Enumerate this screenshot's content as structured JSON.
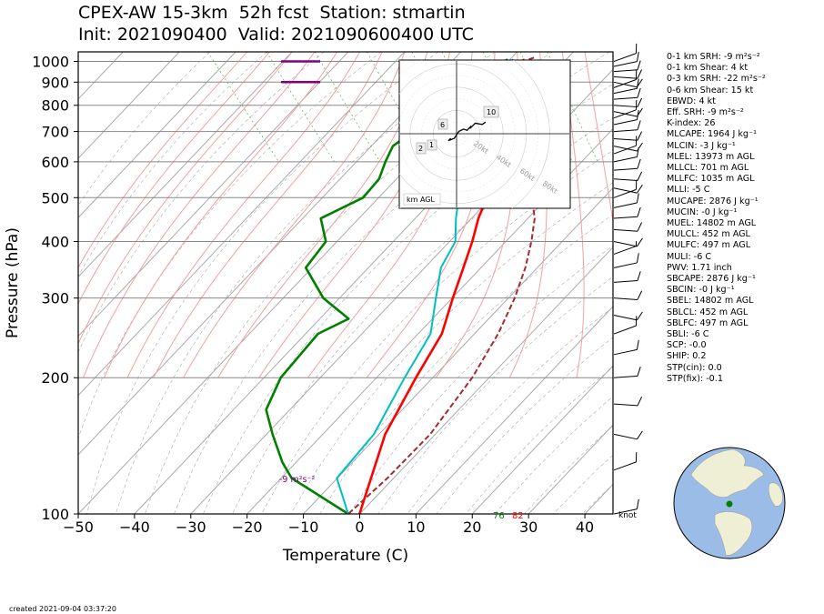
{
  "title": {
    "line1": "CPEX-AW 15-3km  52h fcst  Station: stmartin",
    "line2": "Init: 2021090400  Valid: 2021090600400 UTC"
  },
  "created": "created 2021-09-04 03:37:20",
  "colors": {
    "temperature": "#ff0000",
    "dewpoint": "#008000",
    "wetbulb": "#00bfbf",
    "parcel": "#a52a2a",
    "srh": "#800080",
    "dry_adiabat": "#aaaaaa",
    "moist_adiabat": "#f4a0a0",
    "mixing_ratio": "#66bb66"
  },
  "stats": [
    "0-1 km SRH: -9 m²s⁻²",
    "0-1 km Shear: 4 kt",
    "0-3 km SRH: -22 m²s⁻²",
    "0-6 km Shear: 15 kt",
    "EBWD: 4 kt",
    "Eff. SRH: -9 m²s⁻²",
    "K-index: 26",
    "MLCAPE: 1964 J kg⁻¹",
    "MLCIN: -3 J kg⁻¹",
    "MLEL: 13973 m AGL",
    "MLLCL: 701 m AGL",
    "MLLFC: 1035 m AGL",
    "MLLI: -5 C",
    "MUCAPE: 2876 J kg⁻¹",
    "MUCIN: -0 J kg⁻¹",
    "MUEL: 14802 m AGL",
    "MULCL: 452 m AGL",
    "MULFC: 497 m AGL",
    "MULI: -6 C",
    "PWV: 1.71 inch",
    "SBCAPE: 2876 J kg⁻¹",
    "SBCIN: -0 J kg⁻¹",
    "SBEL: 14802 m AGL",
    "SBLCL: 452 m AGL",
    "SBLFC: 497 m AGL",
    "SBLI: -6 C",
    "SCP: -0.0",
    "SHIP: 0.2",
    "STP(cin): 0.0",
    "STP(fix): -0.1"
  ],
  "srh_label": "-9 m²s⁻²",
  "hodograph": {
    "ring_labels": [
      "20kt",
      "40kt",
      "60kt",
      "80kt"
    ],
    "height_labels": [
      "1",
      "2",
      "6",
      "10"
    ],
    "footer": "km AGL"
  },
  "barb_unit": "knot",
  "surface_labels": {
    "dewpoint": "76",
    "temperature": "82"
  },
  "chart_data": {
    "type": "line",
    "subtype": "skew-T log-p",
    "xlabel": "Temperature (C)",
    "ylabel": "Pressure (hPa)",
    "xlim": [
      -50,
      45
    ],
    "ylim": [
      1050,
      100
    ],
    "y_scale": "log",
    "x_ticks": [
      -50,
      -40,
      -30,
      -20,
      -10,
      0,
      10,
      20,
      30,
      40
    ],
    "y_ticks": [
      100,
      200,
      300,
      400,
      500,
      600,
      700,
      800,
      900,
      1000
    ],
    "series": [
      {
        "name": "Temperature",
        "points": [
          [
            1010,
            28
          ],
          [
            1000,
            27
          ],
          [
            975,
            25
          ],
          [
            950,
            24
          ],
          [
            925,
            22.5
          ],
          [
            900,
            21
          ],
          [
            875,
            19.5
          ],
          [
            850,
            18
          ],
          [
            825,
            16.5
          ],
          [
            800,
            15
          ],
          [
            775,
            14
          ],
          [
            750,
            13
          ],
          [
            725,
            14
          ],
          [
            710,
            13
          ],
          [
            700,
            11
          ],
          [
            680,
            9
          ],
          [
            650,
            7
          ],
          [
            600,
            4.5
          ],
          [
            575,
            3
          ],
          [
            550,
            1
          ],
          [
            525,
            -0.5
          ],
          [
            500,
            -2
          ],
          [
            450,
            -7
          ],
          [
            400,
            -12
          ],
          [
            350,
            -18
          ],
          [
            300,
            -25
          ],
          [
            250,
            -33
          ],
          [
            200,
            -45
          ],
          [
            150,
            -60
          ],
          [
            100,
            -78
          ]
        ]
      },
      {
        "name": "Dewpoint",
        "points": [
          [
            1010,
            25
          ],
          [
            1000,
            24
          ],
          [
            975,
            21
          ],
          [
            950,
            19
          ],
          [
            925,
            16
          ],
          [
            900,
            13
          ],
          [
            875,
            10.5
          ],
          [
            850,
            10
          ],
          [
            825,
            11
          ],
          [
            800,
            12
          ],
          [
            775,
            10.5
          ],
          [
            750,
            8
          ],
          [
            720,
            0
          ],
          [
            700,
            -4
          ],
          [
            650,
            -10
          ],
          [
            600,
            -14
          ],
          [
            550,
            -18
          ],
          [
            500,
            -24
          ],
          [
            450,
            -35
          ],
          [
            400,
            -38
          ],
          [
            350,
            -46
          ],
          [
            300,
            -48
          ],
          [
            270,
            -47
          ],
          [
            250,
            -55
          ],
          [
            200,
            -69
          ],
          [
            170,
            -77
          ],
          [
            150,
            -80
          ],
          [
            130,
            -83
          ],
          [
            120,
            -84
          ],
          [
            100,
            -80
          ]
        ]
      },
      {
        "name": "Wet-bulb",
        "points": [
          [
            1010,
            26
          ],
          [
            1000,
            25
          ],
          [
            975,
            23
          ],
          [
            950,
            21.5
          ],
          [
            925,
            19
          ],
          [
            900,
            16.5
          ],
          [
            875,
            14.5
          ],
          [
            850,
            13
          ],
          [
            825,
            12.5
          ],
          [
            800,
            12.5
          ],
          [
            775,
            11
          ],
          [
            750,
            9
          ],
          [
            700,
            5
          ],
          [
            650,
            2
          ],
          [
            600,
            -1
          ],
          [
            550,
            -4
          ],
          [
            500,
            -7
          ],
          [
            450,
            -11
          ],
          [
            400,
            -15
          ],
          [
            350,
            -22
          ],
          [
            300,
            -28
          ],
          [
            250,
            -35
          ],
          [
            200,
            -47
          ],
          [
            150,
            -62
          ],
          [
            120,
            -76
          ],
          [
            100,
            -80
          ]
        ]
      },
      {
        "name": "Parcel",
        "points": [
          [
            1020,
            30
          ],
          [
            1000,
            27.5
          ],
          [
            950,
            24.5
          ],
          [
            900,
            22.5
          ],
          [
            850,
            21
          ],
          [
            800,
            19
          ],
          [
            750,
            17
          ],
          [
            700,
            15.5
          ],
          [
            650,
            13.5
          ],
          [
            600,
            11.5
          ],
          [
            550,
            9
          ],
          [
            500,
            6
          ],
          [
            450,
            3
          ],
          [
            400,
            -1.5
          ],
          [
            350,
            -7
          ],
          [
            300,
            -14
          ],
          [
            250,
            -23
          ],
          [
            200,
            -35
          ],
          [
            150,
            -52
          ],
          [
            120,
            -67
          ],
          [
            100,
            -80
          ]
        ]
      }
    ],
    "wind_barbs": [
      {
        "p": 1000,
        "speed_kt": 10
      },
      {
        "p": 975,
        "speed_kt": 10
      },
      {
        "p": 950,
        "speed_kt": 10
      },
      {
        "p": 925,
        "speed_kt": 10
      },
      {
        "p": 900,
        "speed_kt": 10
      },
      {
        "p": 875,
        "speed_kt": 10
      },
      {
        "p": 850,
        "speed_kt": 10
      },
      {
        "p": 825,
        "speed_kt": 10
      },
      {
        "p": 800,
        "speed_kt": 10
      },
      {
        "p": 775,
        "speed_kt": 10
      },
      {
        "p": 750,
        "speed_kt": 10
      },
      {
        "p": 725,
        "speed_kt": 10
      },
      {
        "p": 700,
        "speed_kt": 10
      },
      {
        "p": 675,
        "speed_kt": 10
      },
      {
        "p": 650,
        "speed_kt": 10
      },
      {
        "p": 625,
        "speed_kt": 10
      },
      {
        "p": 600,
        "speed_kt": 10
      },
      {
        "p": 575,
        "speed_kt": 10
      },
      {
        "p": 550,
        "speed_kt": 10
      },
      {
        "p": 525,
        "speed_kt": 10
      },
      {
        "p": 500,
        "speed_kt": 10
      },
      {
        "p": 475,
        "speed_kt": 10
      },
      {
        "p": 450,
        "speed_kt": 10
      },
      {
        "p": 425,
        "speed_kt": 10
      },
      {
        "p": 400,
        "speed_kt": 10
      },
      {
        "p": 375,
        "speed_kt": 5
      },
      {
        "p": 350,
        "speed_kt": 10
      },
      {
        "p": 325,
        "speed_kt": 10
      },
      {
        "p": 300,
        "speed_kt": 10
      },
      {
        "p": 275,
        "speed_kt": 10
      },
      {
        "p": 250,
        "speed_kt": 10
      },
      {
        "p": 225,
        "speed_kt": 10
      },
      {
        "p": 200,
        "speed_kt": 10
      },
      {
        "p": 175,
        "speed_kt": 10
      },
      {
        "p": 150,
        "speed_kt": 10
      },
      {
        "p": 125,
        "speed_kt": 10
      },
      {
        "p": 100,
        "speed_kt": 10
      }
    ],
    "srh_layers_hPa": [
      900,
      1000
    ],
    "hodograph": {
      "ring_speeds_kt": [
        20,
        40,
        60,
        80
      ],
      "points_kt": [
        [
          -5,
          -4
        ],
        [
          -7,
          -6
        ],
        [
          -2,
          -4
        ],
        [
          2,
          2
        ],
        [
          6,
          4
        ],
        [
          9,
          3
        ],
        [
          12,
          6
        ],
        [
          12,
          5
        ],
        [
          16,
          9
        ],
        [
          22,
          8
        ],
        [
          25,
          10
        ]
      ]
    }
  }
}
